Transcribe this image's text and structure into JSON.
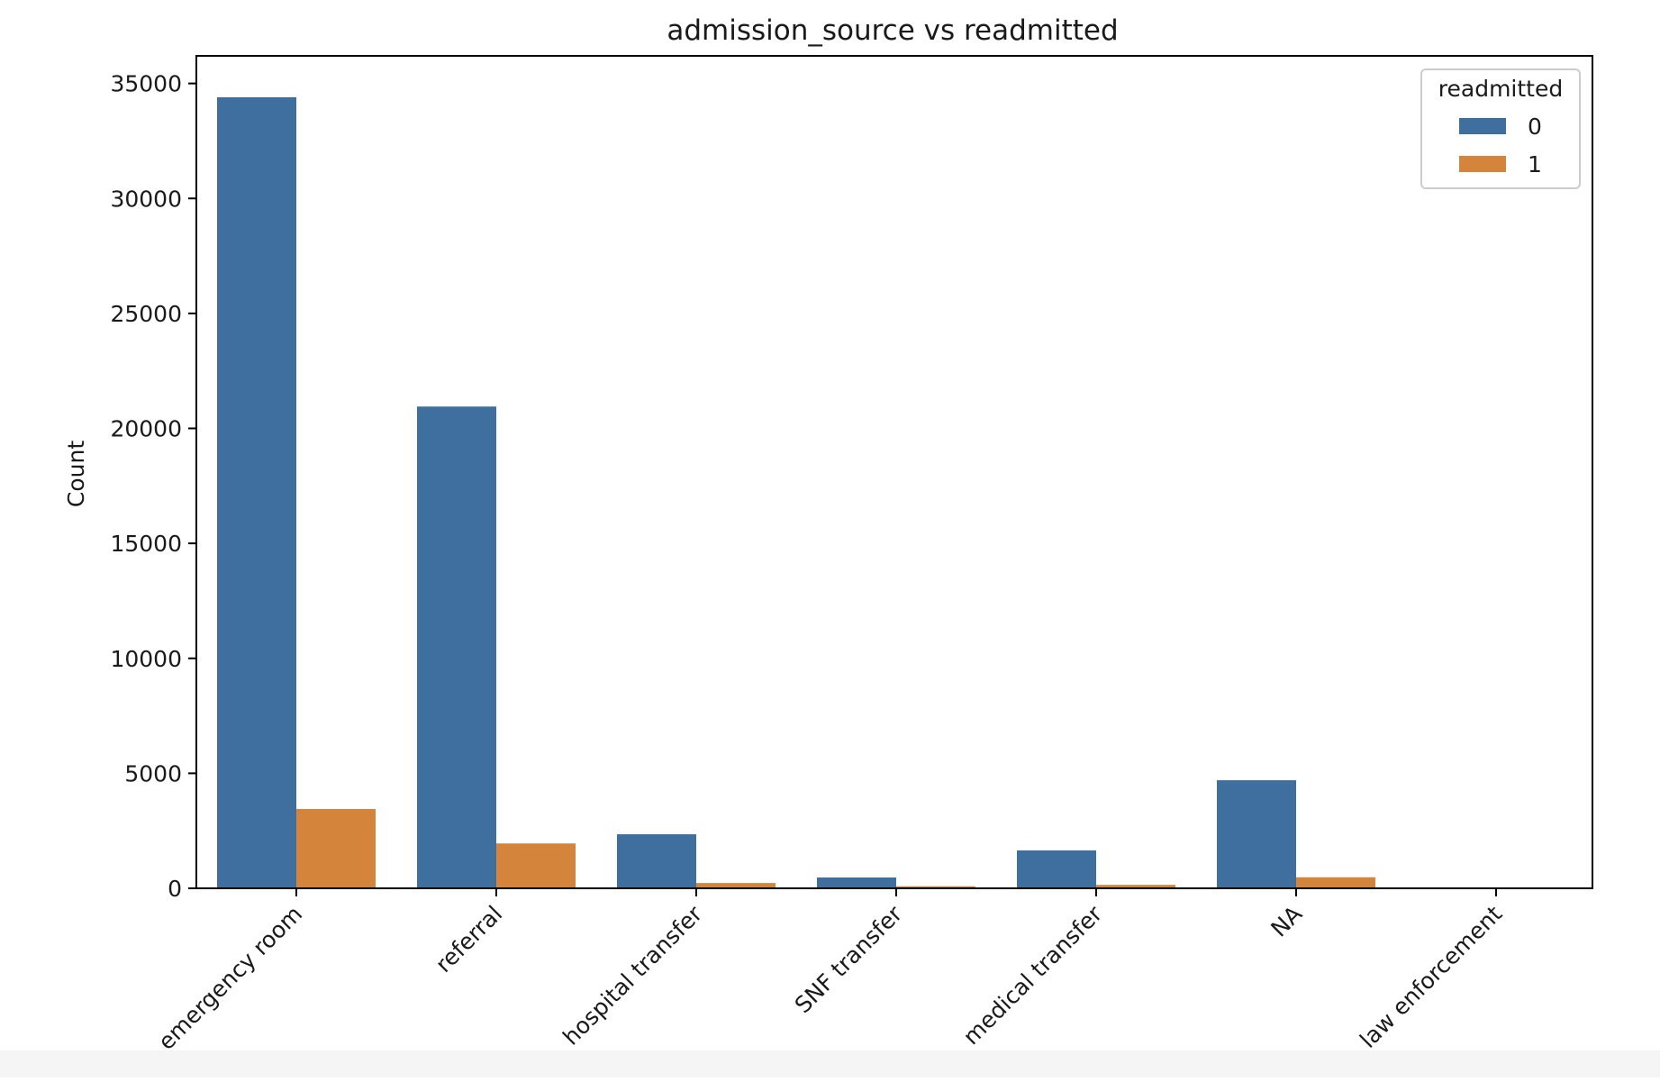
{
  "chart_data": {
    "type": "bar",
    "title": "admission_source vs readmitted",
    "xlabel": "",
    "ylabel": "Count",
    "categories": [
      "emergency room",
      "referral",
      "hospital transfer",
      "SNF transfer",
      "medical transfer",
      "NA",
      "law enforcement"
    ],
    "series": [
      {
        "name": "0",
        "color": "#3f6f9e",
        "values": [
          34400,
          20950,
          2350,
          470,
          1650,
          4700,
          10
        ]
      },
      {
        "name": "1",
        "color": "#d5843c",
        "values": [
          3450,
          1950,
          230,
          90,
          150,
          480,
          2
        ]
      }
    ],
    "ylim": [
      0,
      35000
    ],
    "yticks": [
      0,
      5000,
      10000,
      15000,
      20000,
      25000,
      30000,
      35000
    ],
    "legend": {
      "title": "readmitted",
      "position": "top-right"
    },
    "grid": false
  }
}
